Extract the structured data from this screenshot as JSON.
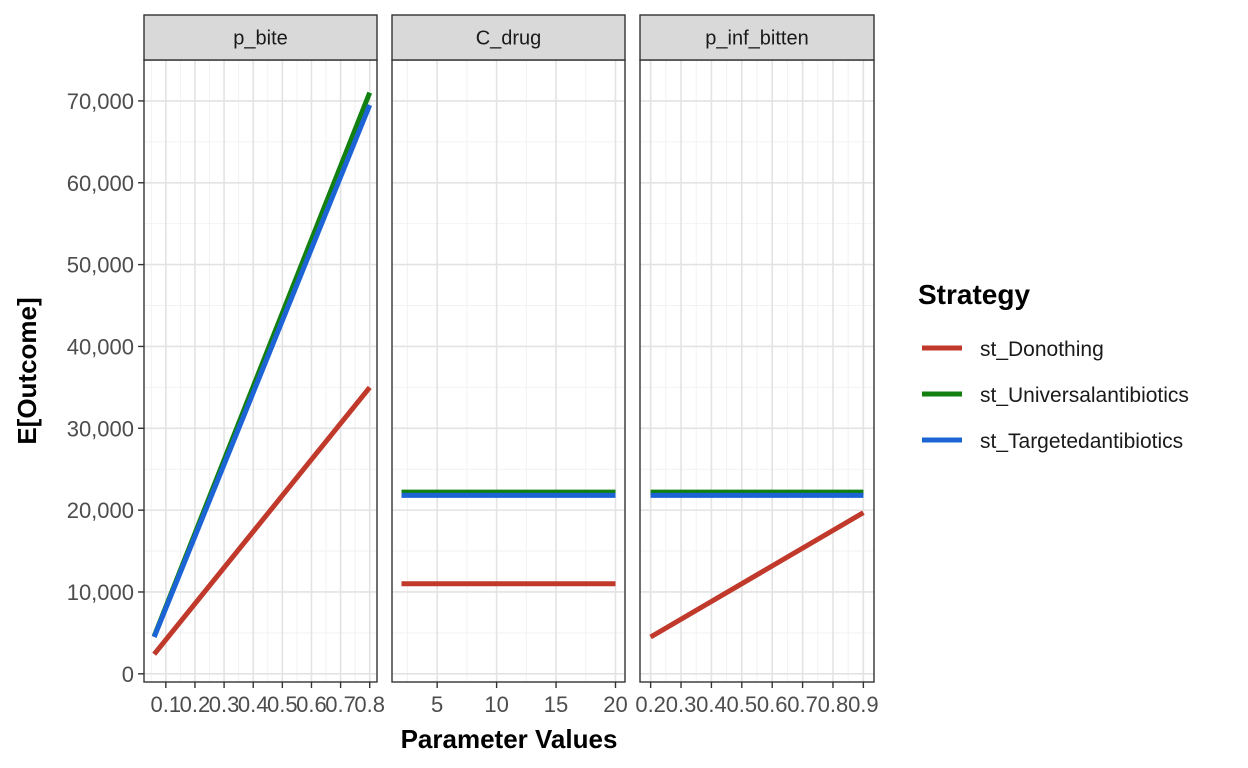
{
  "chart_data": {
    "type": "line",
    "xlabel": "Parameter Values",
    "ylabel": "E[Outcome]",
    "ylim": [
      -1000,
      75000
    ],
    "yticks": [
      0,
      10000,
      20000,
      30000,
      40000,
      50000,
      60000,
      70000
    ],
    "ytick_labels": [
      "0",
      "10,000",
      "20,000",
      "30,000",
      "40,000",
      "50,000",
      "60,000",
      "70,000"
    ],
    "grid": true,
    "legend": {
      "title": "Strategy",
      "position": "right",
      "entries": [
        "st_Donothing",
        "st_Universalantibiotics",
        "st_Targetedantibiotics"
      ]
    },
    "colors": {
      "st_Donothing": "#c0392b",
      "st_Universalantibiotics": "#118011",
      "st_Targetedantibiotics": "#1c64d6"
    },
    "panels": [
      {
        "name": "p_bite",
        "xlim": [
          0.025,
          0.825
        ],
        "xticks": [
          0.1,
          0.2,
          0.3,
          0.4,
          0.5,
          0.6,
          0.7,
          0.8
        ],
        "xtick_labels": [
          "0.1",
          "0.2",
          "0.3",
          "0.4",
          "0.5",
          "0.6",
          "0.7",
          "0.8"
        ],
        "series": [
          {
            "name": "st_Donothing",
            "x": [
              0.06,
              0.8
            ],
            "y": [
              2400,
              35000
            ]
          },
          {
            "name": "st_Universalantibiotics",
            "x": [
              0.06,
              0.8
            ],
            "y": [
              4600,
              71000
            ]
          },
          {
            "name": "st_Targetedantibiotics",
            "x": [
              0.06,
              0.8
            ],
            "y": [
              4500,
              69500
            ]
          }
        ]
      },
      {
        "name": "C_drug",
        "xlim": [
          1.2,
          20.8
        ],
        "xticks": [
          5,
          10,
          15,
          20
        ],
        "xtick_labels": [
          "5",
          "10",
          "15",
          "20"
        ],
        "series": [
          {
            "name": "st_Donothing",
            "x": [
              2,
              20
            ],
            "y": [
              11000,
              11000
            ]
          },
          {
            "name": "st_Universalantibiotics",
            "x": [
              2,
              20
            ],
            "y": [
              22200,
              22200
            ]
          },
          {
            "name": "st_Targetedantibiotics",
            "x": [
              2,
              20
            ],
            "y": [
              21800,
              21800
            ]
          }
        ]
      },
      {
        "name": "p_inf_bitten",
        "xlim": [
          0.165,
          0.935
        ],
        "xticks": [
          0.2,
          0.3,
          0.4,
          0.5,
          0.6,
          0.7,
          0.8,
          0.9
        ],
        "xtick_labels": [
          "0.2",
          "0.3",
          "0.4",
          "0.5",
          "0.6",
          "0.7",
          "0.8",
          "0.9"
        ],
        "series": [
          {
            "name": "st_Donothing",
            "x": [
              0.2,
              0.9
            ],
            "y": [
              4500,
              19700
            ]
          },
          {
            "name": "st_Universalantibiotics",
            "x": [
              0.2,
              0.9
            ],
            "y": [
              22200,
              22200
            ]
          },
          {
            "name": "st_Targetedantibiotics",
            "x": [
              0.2,
              0.9
            ],
            "y": [
              21800,
              21800
            ]
          }
        ]
      }
    ]
  }
}
